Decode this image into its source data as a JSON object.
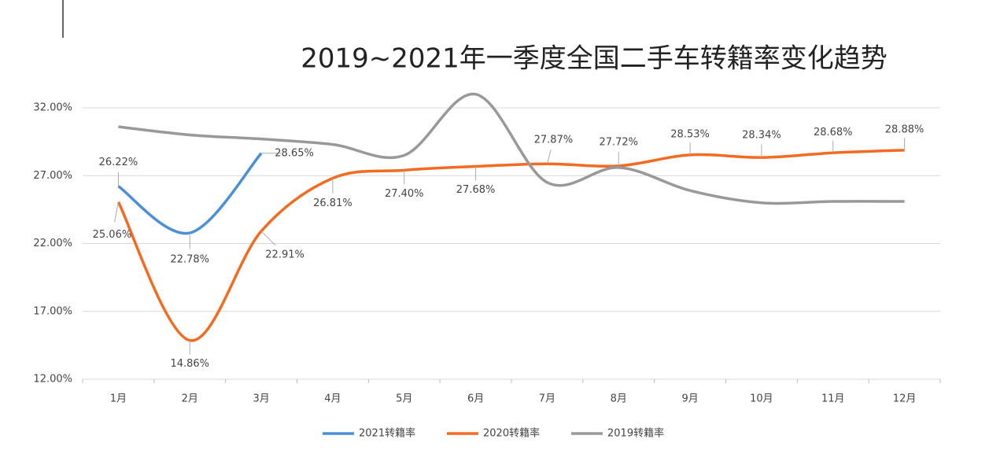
{
  "chart_data": {
    "type": "line",
    "title": "2019~2021年一季度全国二手车转籍率变化趋势",
    "categories": [
      "1月",
      "2月",
      "3月",
      "4月",
      "5月",
      "6月",
      "7月",
      "8月",
      "9月",
      "10月",
      "11月",
      "12月"
    ],
    "series": [
      {
        "name": "2021转籍率",
        "color": "#4a90d9",
        "values": [
          26.22,
          22.78,
          28.65,
          null,
          null,
          null,
          null,
          null,
          null,
          null,
          null,
          null
        ],
        "value_labels": [
          "26.22%",
          "22.78%",
          "28.65%",
          null,
          null,
          null,
          null,
          null,
          null,
          null,
          null,
          null
        ]
      },
      {
        "name": "2020转籍率",
        "color": "#f26b21",
        "values": [
          25.06,
          14.86,
          22.91,
          26.81,
          27.4,
          27.68,
          27.87,
          27.72,
          28.53,
          28.34,
          28.68,
          28.88
        ],
        "value_labels": [
          "25.06%",
          "14.86%",
          "22.91%",
          "26.81%",
          "27.40%",
          "27.68%",
          "27.87%",
          "27.72%",
          "28.53%",
          "28.34%",
          "28.68%",
          "28.88%"
        ]
      },
      {
        "name": "2019转籍率",
        "color": "#999999",
        "values": [
          30.6,
          30.0,
          29.7,
          29.3,
          28.5,
          33.0,
          26.5,
          27.6,
          25.9,
          25.0,
          25.1,
          25.1
        ]
      }
    ],
    "ylim": [
      12,
      32
    ],
    "yticks": [
      {
        "value": 12,
        "label": "12.00%"
      },
      {
        "value": 17,
        "label": "17.00%"
      },
      {
        "value": 22,
        "label": "22.00%"
      },
      {
        "value": 27,
        "label": "27.00%"
      },
      {
        "value": 32,
        "label": "32.00%"
      }
    ],
    "grid": true,
    "legend": "bottom"
  }
}
